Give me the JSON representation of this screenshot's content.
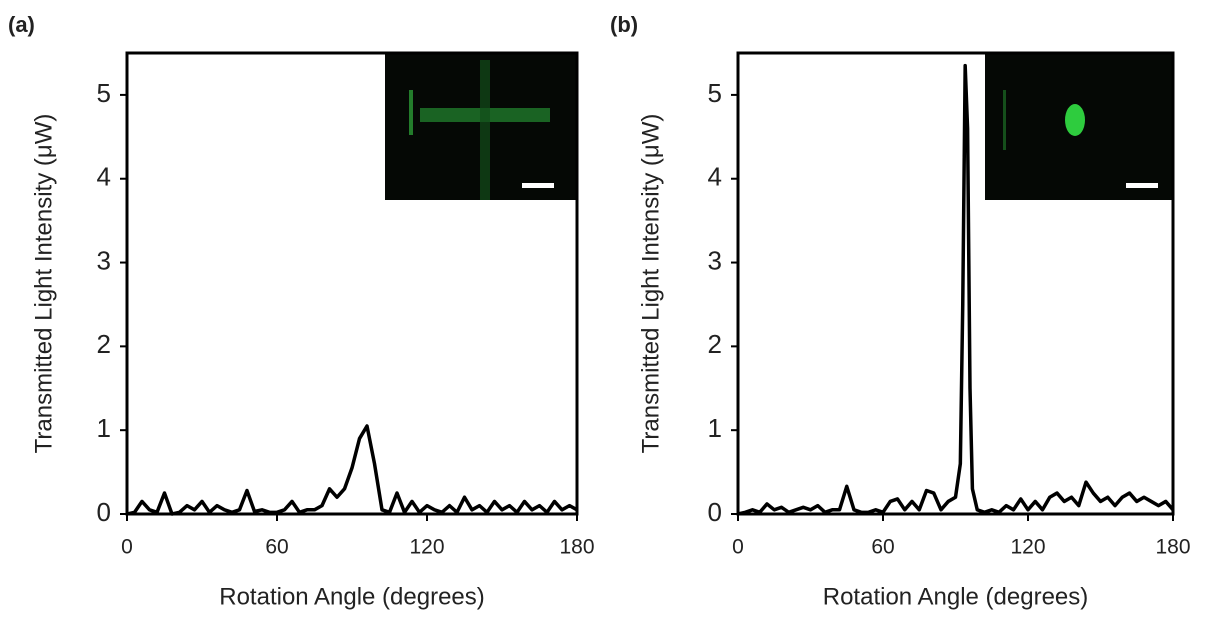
{
  "chart_data": [
    {
      "type": "line",
      "panel_label": "(a)",
      "xlabel": "Rotation Angle (degrees)",
      "ylabel": "Transmitted Light Intensity (μW)",
      "xlim": [
        0,
        180
      ],
      "xticks": [
        0,
        60,
        120,
        180
      ],
      "ylim": [
        0,
        5.5
      ],
      "yticks": [
        0,
        1,
        2,
        3,
        4,
        5
      ],
      "color": "#000000",
      "grid": false,
      "x": [
        0,
        3,
        6,
        9,
        12,
        15,
        18,
        21,
        24,
        27,
        30,
        33,
        36,
        39,
        42,
        45,
        48,
        51,
        54,
        57,
        60,
        63,
        66,
        69,
        72,
        75,
        78,
        81,
        84,
        87,
        90,
        93,
        96,
        99,
        102,
        105,
        108,
        111,
        114,
        117,
        120,
        123,
        126,
        129,
        132,
        135,
        138,
        141,
        144,
        147,
        150,
        153,
        156,
        159,
        162,
        165,
        168,
        171,
        174,
        177,
        180
      ],
      "values": [
        0,
        0.02,
        0.15,
        0.05,
        0.02,
        0.25,
        0,
        0.02,
        0.1,
        0.05,
        0.15,
        0.02,
        0.1,
        0.05,
        0.02,
        0.05,
        0.28,
        0.03,
        0.05,
        0.02,
        0.02,
        0.05,
        0.15,
        0.02,
        0.05,
        0.05,
        0.1,
        0.3,
        0.2,
        0.3,
        0.55,
        0.9,
        1.05,
        0.6,
        0.05,
        0.02,
        0.25,
        0.02,
        0.15,
        0.02,
        0.1,
        0.05,
        0.02,
        0.1,
        0.02,
        0.2,
        0.05,
        0.1,
        0.02,
        0.15,
        0.05,
        0.1,
        0.02,
        0.15,
        0.05,
        0.1,
        0.02,
        0.15,
        0.05,
        0.1,
        0.05
      ]
    },
    {
      "type": "line",
      "panel_label": "(b)",
      "xlabel": "Rotation Angle (degrees)",
      "ylabel": "Transmitted Light Intensity (μW)",
      "xlim": [
        0,
        180
      ],
      "xticks": [
        0,
        60,
        120,
        180
      ],
      "ylim": [
        0,
        5.5
      ],
      "yticks": [
        0,
        1,
        2,
        3,
        4,
        5
      ],
      "color": "#000000",
      "grid": false,
      "x": [
        0,
        3,
        6,
        9,
        12,
        15,
        18,
        21,
        24,
        27,
        30,
        33,
        36,
        39,
        42,
        45,
        48,
        51,
        54,
        57,
        60,
        63,
        66,
        69,
        72,
        75,
        78,
        81,
        84,
        87,
        90,
        92,
        93,
        94,
        95,
        96,
        97,
        99,
        102,
        105,
        108,
        111,
        114,
        117,
        120,
        123,
        126,
        129,
        132,
        135,
        138,
        141,
        144,
        147,
        150,
        153,
        156,
        159,
        162,
        165,
        168,
        171,
        174,
        177,
        180
      ],
      "values": [
        0,
        0.02,
        0.05,
        0.02,
        0.12,
        0.05,
        0.08,
        0.02,
        0.05,
        0.08,
        0.05,
        0.1,
        0.02,
        0.05,
        0.05,
        0.33,
        0.05,
        0.02,
        0.02,
        0.05,
        0.02,
        0.15,
        0.18,
        0.05,
        0.15,
        0.05,
        0.28,
        0.25,
        0.05,
        0.15,
        0.2,
        0.6,
        2.5,
        5.35,
        4.6,
        1.5,
        0.3,
        0.05,
        0.02,
        0.05,
        0.02,
        0.1,
        0.05,
        0.18,
        0.05,
        0.15,
        0.05,
        0.2,
        0.25,
        0.15,
        0.2,
        0.1,
        0.38,
        0.25,
        0.15,
        0.2,
        0.1,
        0.2,
        0.25,
        0.15,
        0.2,
        0.15,
        0.1,
        0.15,
        0.05
      ]
    }
  ]
}
